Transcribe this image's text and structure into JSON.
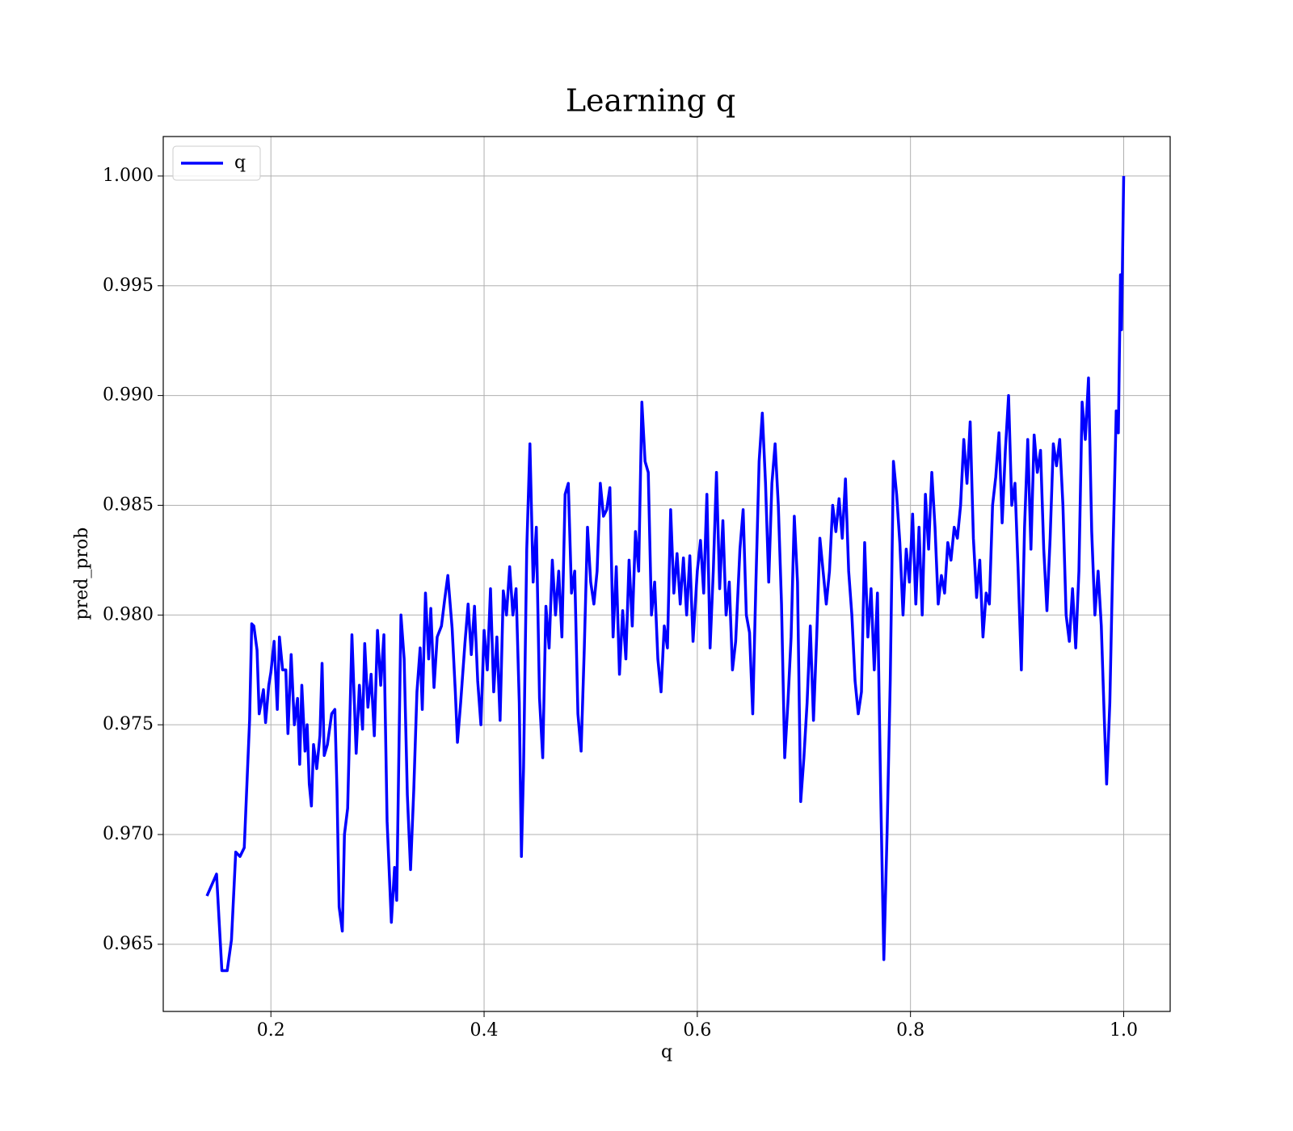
{
  "chart_data": {
    "type": "line",
    "title": "Learning q",
    "x_label": "q",
    "y_label": "pred_prob",
    "legend": "upper left",
    "grid": true,
    "xlim": [
      0.099,
      1.0436
    ],
    "ylim": [
      0.96194,
      1.0018
    ],
    "xticks": [
      0.2,
      0.4,
      0.6,
      0.8,
      {
        "value": 1,
        "label": "1.0"
      }
    ],
    "yticks": [
      0.965,
      {
        "value": 0.97,
        "label": "0.970"
      },
      0.975,
      {
        "value": 0.98,
        "label": "0.980"
      },
      0.985,
      {
        "value": 0.99,
        "label": "0.990"
      },
      0.995,
      {
        "value": 1,
        "label": "1.000"
      }
    ],
    "x": [
      0.14,
      0.149,
      0.154,
      0.159,
      0.163,
      0.167,
      0.171,
      0.175,
      0.18,
      0.182,
      0.184,
      0.187,
      0.189,
      0.193,
      0.195,
      0.198,
      0.2,
      0.203,
      0.206,
      0.208,
      0.211,
      0.214,
      0.216,
      0.219,
      0.222,
      0.225,
      0.227,
      0.229,
      0.232,
      0.234,
      0.236,
      0.238,
      0.24,
      0.243,
      0.246,
      0.248,
      0.25,
      0.253,
      0.257,
      0.26,
      0.262,
      0.264,
      0.267,
      0.269,
      0.272,
      0.276,
      0.28,
      0.283,
      0.286,
      0.288,
      0.291,
      0.294,
      0.297,
      0.3,
      0.303,
      0.306,
      0.309,
      0.313,
      0.316,
      0.318,
      0.322,
      0.325,
      0.328,
      0.331,
      0.334,
      0.337,
      0.34,
      0.342,
      0.345,
      0.348,
      0.35,
      0.353,
      0.356,
      0.36,
      0.363,
      0.366,
      0.37,
      0.373,
      0.375,
      0.378,
      0.382,
      0.385,
      0.388,
      0.391,
      0.394,
      0.397,
      0.4,
      0.403,
      0.406,
      0.409,
      0.412,
      0.415,
      0.418,
      0.421,
      0.424,
      0.427,
      0.43,
      0.433,
      0.435,
      0.437,
      0.44,
      0.443,
      0.446,
      0.449,
      0.452,
      0.455,
      0.458,
      0.461,
      0.464,
      0.467,
      0.47,
      0.473,
      0.476,
      0.479,
      0.482,
      0.485,
      0.488,
      0.491,
      0.494,
      0.497,
      0.5,
      0.503,
      0.506,
      0.509,
      0.512,
      0.515,
      0.518,
      0.521,
      0.524,
      0.527,
      0.53,
      0.533,
      0.536,
      0.539,
      0.542,
      0.545,
      0.548,
      0.551,
      0.554,
      0.557,
      0.56,
      0.563,
      0.566,
      0.569,
      0.572,
      0.575,
      0.578,
      0.581,
      0.584,
      0.587,
      0.59,
      0.593,
      0.596,
      0.6,
      0.603,
      0.606,
      0.609,
      0.612,
      0.615,
      0.618,
      0.621,
      0.624,
      0.627,
      0.63,
      0.633,
      0.636,
      0.64,
      0.643,
      0.646,
      0.649,
      0.652,
      0.655,
      0.658,
      0.661,
      0.664,
      0.667,
      0.67,
      0.673,
      0.676,
      0.679,
      0.682,
      0.685,
      0.688,
      0.691,
      0.694,
      0.697,
      0.7,
      0.703,
      0.706,
      0.709,
      0.712,
      0.715,
      0.718,
      0.721,
      0.724,
      0.727,
      0.73,
      0.733,
      0.736,
      0.739,
      0.742,
      0.745,
      0.748,
      0.751,
      0.754,
      0.757,
      0.76,
      0.763,
      0.766,
      0.769,
      0.772,
      0.775,
      0.778,
      0.781,
      0.784,
      0.787,
      0.79,
      0.793,
      0.796,
      0.799,
      0.802,
      0.805,
      0.808,
      0.811,
      0.814,
      0.817,
      0.82,
      0.823,
      0.826,
      0.829,
      0.832,
      0.835,
      0.838,
      0.841,
      0.844,
      0.847,
      0.85,
      0.853,
      0.856,
      0.859,
      0.862,
      0.865,
      0.868,
      0.871,
      0.874,
      0.877,
      0.88,
      0.883,
      0.886,
      0.889,
      0.892,
      0.895,
      0.898,
      0.901,
      0.904,
      0.907,
      0.91,
      0.913,
      0.916,
      0.919,
      0.922,
      0.925,
      0.928,
      0.931,
      0.934,
      0.937,
      0.94,
      0.943,
      0.946,
      0.949,
      0.952,
      0.955,
      0.958,
      0.961,
      0.964,
      0.967,
      0.97,
      0.973,
      0.976,
      0.979,
      0.982,
      0.984,
      0.987,
      0.99,
      0.993,
      0.995,
      0.997,
      0.998,
      1.0
    ],
    "series": [
      {
        "name": "q",
        "color": "#0000ff",
        "values": [
          0.9672,
          0.9682,
          0.9638,
          0.9638,
          0.9652,
          0.9692,
          0.969,
          0.9694,
          0.9752,
          0.9796,
          0.9795,
          0.9784,
          0.9755,
          0.9766,
          0.9751,
          0.9768,
          0.9774,
          0.9788,
          0.9757,
          0.979,
          0.9775,
          0.9775,
          0.9746,
          0.9782,
          0.975,
          0.9762,
          0.9732,
          0.9768,
          0.9738,
          0.975,
          0.9723,
          0.9713,
          0.9741,
          0.973,
          0.9745,
          0.9778,
          0.9736,
          0.9741,
          0.9755,
          0.9757,
          0.972,
          0.9667,
          0.9656,
          0.97,
          0.9712,
          0.9791,
          0.9737,
          0.9768,
          0.9748,
          0.9787,
          0.9758,
          0.9773,
          0.9745,
          0.9793,
          0.9768,
          0.9791,
          0.9706,
          0.966,
          0.9685,
          0.967,
          0.98,
          0.978,
          0.9718,
          0.9684,
          0.972,
          0.9765,
          0.9785,
          0.9757,
          0.981,
          0.978,
          0.9803,
          0.9767,
          0.979,
          0.9795,
          0.9807,
          0.9818,
          0.9794,
          0.9765,
          0.9742,
          0.976,
          0.9787,
          0.9805,
          0.9782,
          0.9804,
          0.977,
          0.975,
          0.9793,
          0.9775,
          0.9812,
          0.9765,
          0.979,
          0.9752,
          0.9811,
          0.98,
          0.9822,
          0.98,
          0.9812,
          0.976,
          0.969,
          0.973,
          0.983,
          0.9878,
          0.9815,
          0.984,
          0.9762,
          0.9735,
          0.9804,
          0.9785,
          0.9825,
          0.98,
          0.982,
          0.979,
          0.9855,
          0.986,
          0.981,
          0.982,
          0.9755,
          0.9738,
          0.9785,
          0.984,
          0.9815,
          0.9805,
          0.982,
          0.986,
          0.9845,
          0.9848,
          0.9858,
          0.979,
          0.9822,
          0.9773,
          0.9802,
          0.978,
          0.9825,
          0.9795,
          0.9838,
          0.982,
          0.9897,
          0.987,
          0.9865,
          0.98,
          0.9815,
          0.978,
          0.9765,
          0.9795,
          0.9785,
          0.9848,
          0.981,
          0.9828,
          0.9805,
          0.9826,
          0.98,
          0.9827,
          0.9788,
          0.982,
          0.9834,
          0.981,
          0.9855,
          0.9785,
          0.982,
          0.9865,
          0.9812,
          0.9843,
          0.98,
          0.9815,
          0.9775,
          0.9788,
          0.983,
          0.9848,
          0.98,
          0.9792,
          0.9755,
          0.9815,
          0.987,
          0.9892,
          0.986,
          0.9815,
          0.986,
          0.9878,
          0.985,
          0.9805,
          0.9735,
          0.976,
          0.979,
          0.9845,
          0.9815,
          0.9715,
          0.9735,
          0.976,
          0.9795,
          0.9752,
          0.979,
          0.9835,
          0.982,
          0.9805,
          0.982,
          0.985,
          0.9838,
          0.9853,
          0.9835,
          0.9862,
          0.982,
          0.98,
          0.977,
          0.9755,
          0.9765,
          0.9833,
          0.979,
          0.9812,
          0.9775,
          0.981,
          0.972,
          0.9643,
          0.97,
          0.977,
          0.987,
          0.9855,
          0.9833,
          0.98,
          0.983,
          0.9815,
          0.9846,
          0.9805,
          0.984,
          0.98,
          0.9855,
          0.983,
          0.9865,
          0.984,
          0.9805,
          0.9818,
          0.981,
          0.9833,
          0.9825,
          0.984,
          0.9835,
          0.985,
          0.988,
          0.986,
          0.9888,
          0.9835,
          0.9808,
          0.9825,
          0.979,
          0.981,
          0.9805,
          0.985,
          0.9863,
          0.9883,
          0.9842,
          0.9875,
          0.99,
          0.985,
          0.986,
          0.982,
          0.9775,
          0.984,
          0.988,
          0.983,
          0.9882,
          0.9865,
          0.9875,
          0.983,
          0.9802,
          0.9835,
          0.9878,
          0.9868,
          0.988,
          0.985,
          0.98,
          0.9788,
          0.9812,
          0.9785,
          0.982,
          0.9897,
          0.988,
          0.9908,
          0.9838,
          0.98,
          0.982,
          0.9795,
          0.975,
          0.9723,
          0.976,
          0.983,
          0.9893,
          0.9883,
          0.9955,
          0.993,
          1.0
        ]
      }
    ]
  }
}
